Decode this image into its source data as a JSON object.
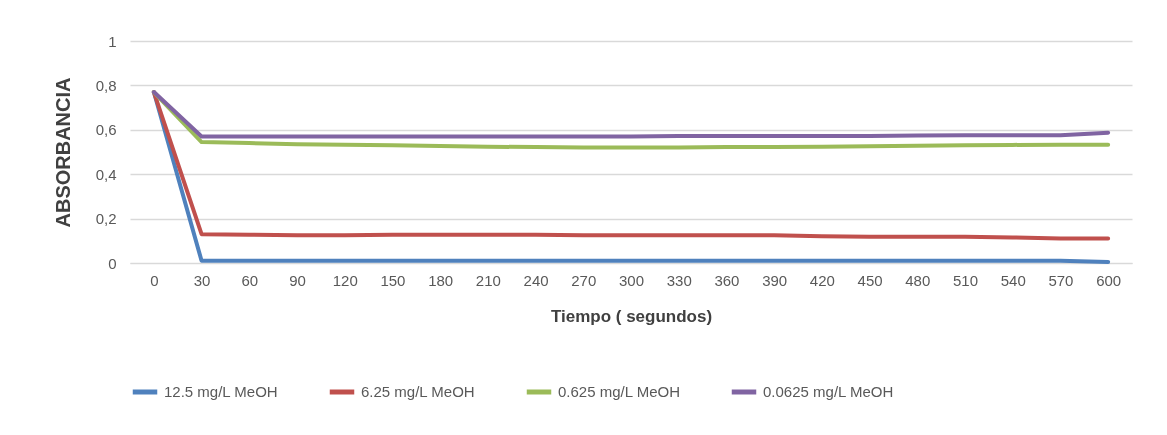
{
  "chart_data": {
    "type": "line",
    "xlabel": "Tiempo ( segundos)",
    "ylabel": "ABSORBANCIA",
    "categories": [
      "0",
      "30",
      "60",
      "90",
      "120",
      "150",
      "180",
      "210",
      "240",
      "270",
      "300",
      "330",
      "360",
      "390",
      "420",
      "450",
      "480",
      "510",
      "540",
      "570",
      "600"
    ],
    "ylim": [
      0,
      1
    ],
    "yticks": [
      0,
      {
        "value": 0.2,
        "label": "0,2"
      },
      {
        "value": 0.4,
        "label": "0,4"
      },
      {
        "value": 0.6,
        "label": "0,6"
      },
      {
        "value": 0.8,
        "label": "0,8"
      },
      1
    ],
    "grid": "y",
    "legend": "bottom",
    "marker": "none",
    "line_style": "solid",
    "series": [
      {
        "name": "12.5 mg/L MeOH",
        "color": "#4f81bd",
        "values": [
          0.77,
          0.01,
          0.01,
          0.01,
          0.01,
          0.01,
          0.01,
          0.01,
          0.01,
          0.01,
          0.01,
          0.01,
          0.01,
          0.01,
          0.01,
          0.01,
          0.01,
          0.01,
          0.01,
          0.01,
          0.005
        ]
      },
      {
        "name": "6.25 mg/L MeOH",
        "color": "#c0504d",
        "values": [
          0.77,
          0.13,
          0.127,
          0.125,
          0.125,
          0.127,
          0.127,
          0.127,
          0.127,
          0.125,
          0.125,
          0.125,
          0.125,
          0.125,
          0.12,
          0.118,
          0.118,
          0.118,
          0.115,
          0.11,
          0.11
        ]
      },
      {
        "name": "0.625 mg/L MeOH",
        "color": "#9bbb59",
        "values": [
          0.77,
          0.545,
          0.54,
          0.535,
          0.533,
          0.53,
          0.527,
          0.524,
          0.522,
          0.52,
          0.52,
          0.52,
          0.522,
          0.522,
          0.524,
          0.526,
          0.528,
          0.53,
          0.532,
          0.533,
          0.533
        ]
      },
      {
        "name": "0.0625 mg/L MeOH",
        "color": "#8064a2",
        "values": [
          0.77,
          0.57,
          0.57,
          0.57,
          0.57,
          0.57,
          0.57,
          0.57,
          0.57,
          0.57,
          0.57,
          0.572,
          0.572,
          0.572,
          0.572,
          0.572,
          0.574,
          0.575,
          0.575,
          0.575,
          0.587
        ]
      }
    ]
  }
}
